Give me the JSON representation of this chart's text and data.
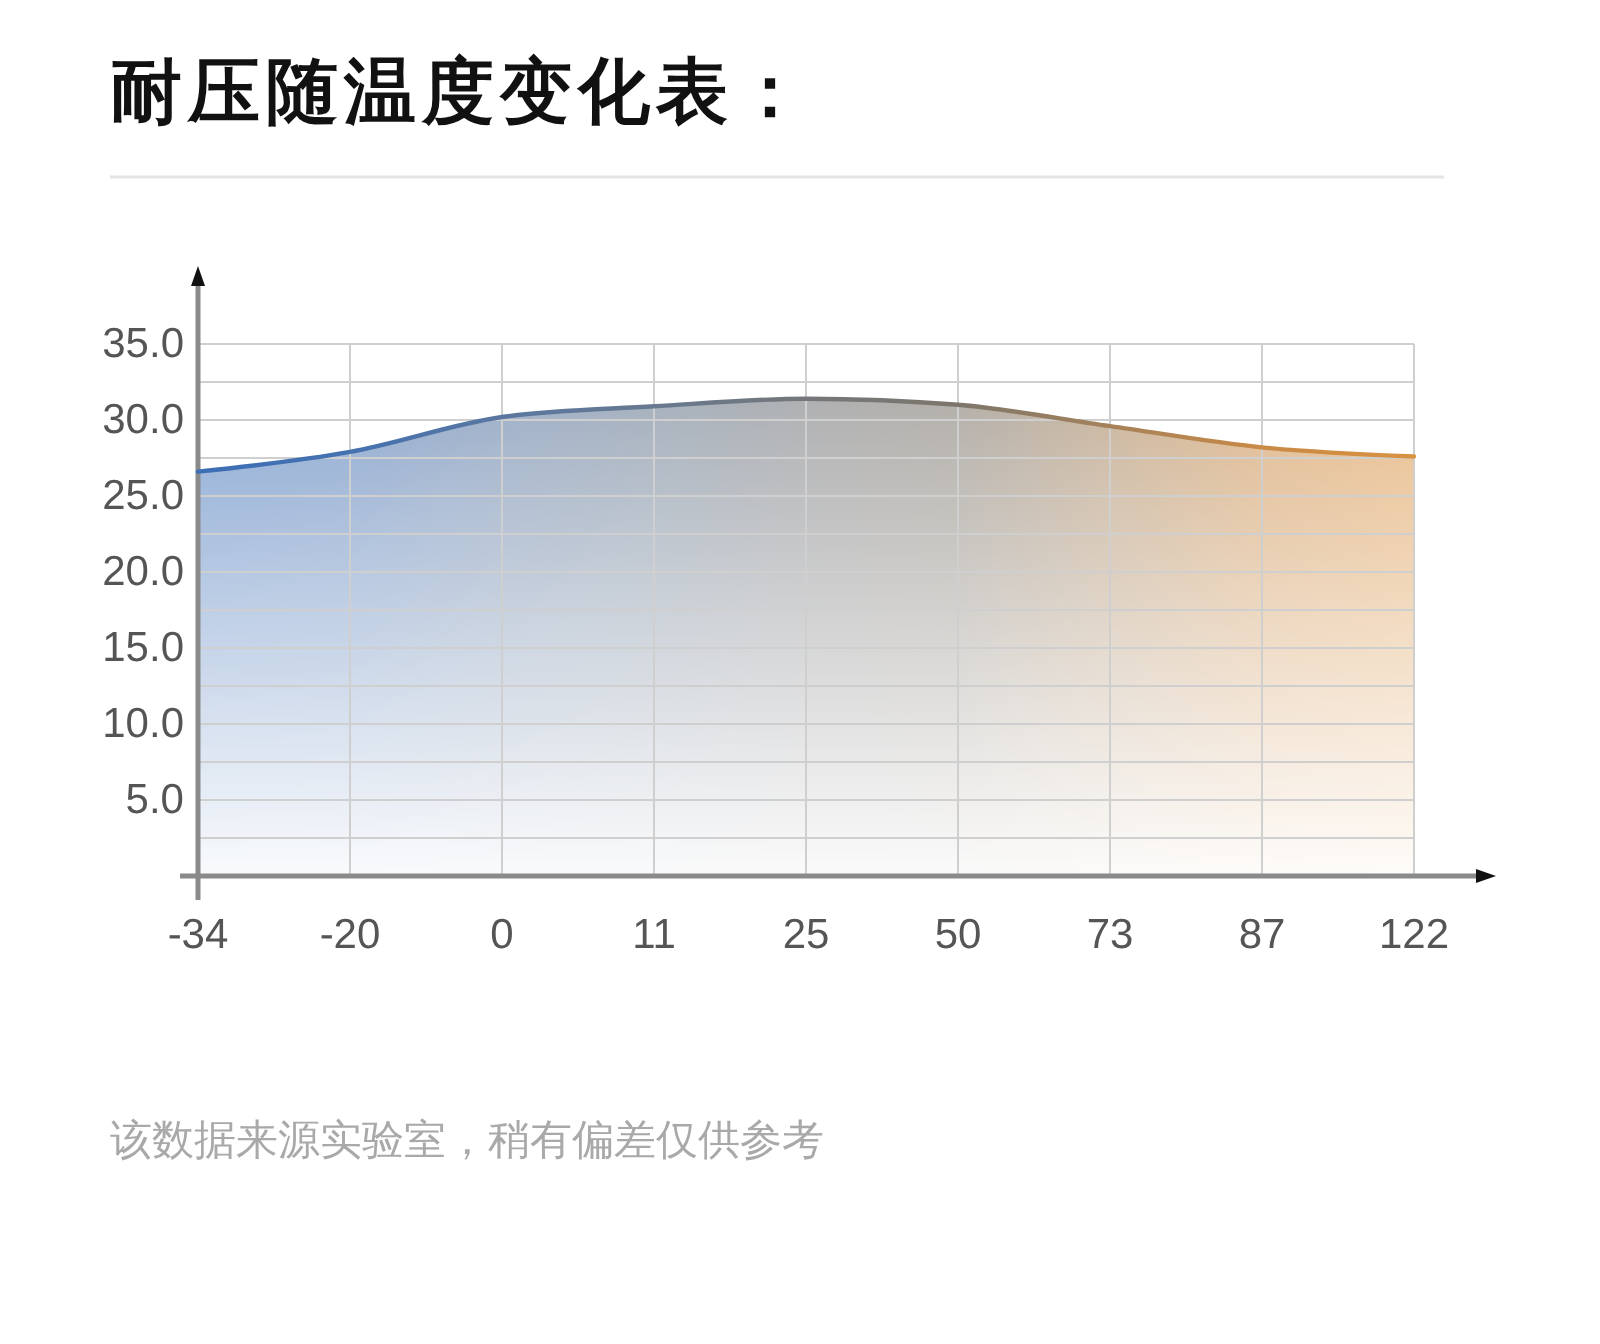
{
  "chart_data": {
    "type": "area",
    "title": "耐压随温度变化表：",
    "categories": [
      "-34",
      "-20",
      "0",
      "11",
      "25",
      "50",
      "73",
      "87",
      "122"
    ],
    "series": [
      {
        "values": [
          26.6,
          27.9,
          30.2,
          30.9,
          31.4,
          31.0,
          29.6,
          28.2,
          27.6
        ],
        "colors": [
          "#3d6fb6",
          "#4571b0",
          "#5a77a0",
          "#67798f",
          "#75777a",
          "#7d766c",
          "#a5825a",
          "#c98a45",
          "#d99241"
        ]
      }
    ],
    "ylim": [
      0,
      35
    ],
    "yticks": [
      {
        "value": 2.5,
        "label": null
      },
      {
        "value": 5,
        "label": "5.0"
      },
      {
        "value": 7.5,
        "label": null
      },
      {
        "value": 10,
        "label": "10.0"
      },
      {
        "value": 12.5,
        "label": null
      },
      {
        "value": 15,
        "label": "15.0"
      },
      {
        "value": 17.5,
        "label": null
      },
      {
        "value": 20,
        "label": "20.0"
      },
      {
        "value": 22.5,
        "label": null
      },
      {
        "value": 25,
        "label": "25.0"
      },
      {
        "value": 27.5,
        "label": null
      },
      {
        "value": 30,
        "label": "30.0"
      },
      {
        "value": 32.5,
        "label": null
      },
      {
        "value": 35,
        "label": "35.0"
      }
    ],
    "grid": true,
    "annotations": [
      "该数据来源实验室，稍有偏差仅供参考"
    ]
  }
}
